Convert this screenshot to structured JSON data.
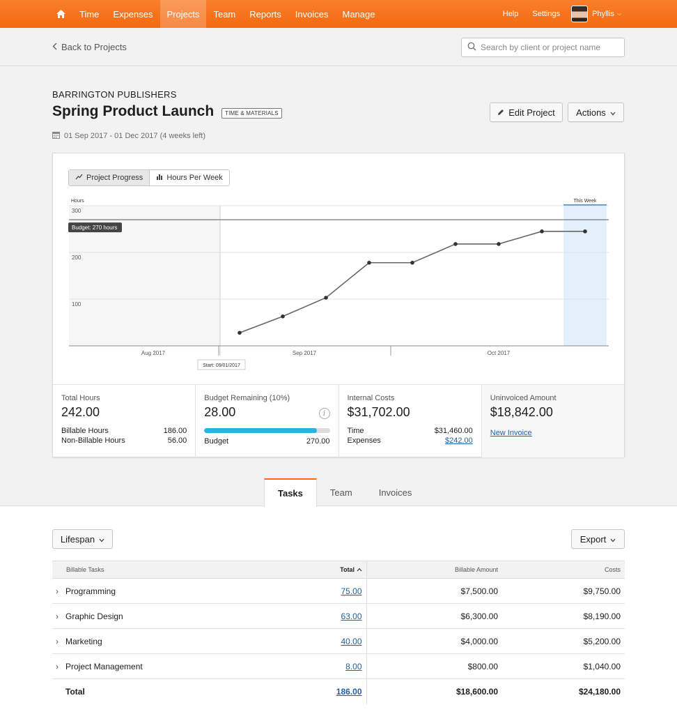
{
  "nav": {
    "items": [
      "Time",
      "Expenses",
      "Projects",
      "Team",
      "Reports",
      "Invoices",
      "Manage"
    ],
    "active": "Projects",
    "help": "Help",
    "settings": "Settings",
    "user": "Phyllis"
  },
  "subheader": {
    "back_label": "Back to Projects",
    "search_placeholder": "Search by client or project name"
  },
  "project": {
    "client": "BARRINGTON PUBLISHERS",
    "title": "Spring Product Launch",
    "badge": "TIME & MATERIALS",
    "dates": "01 Sep 2017 - 01 Dec 2017 (4 weeks left)",
    "edit_label": "Edit Project",
    "actions_label": "Actions"
  },
  "chart_toggle": {
    "progress_label": "Project Progress",
    "hours_label": "Hours Per Week"
  },
  "chart_data": {
    "type": "line",
    "ylabel": "Hours",
    "ylim": [
      0,
      300
    ],
    "yticks": [
      100,
      200,
      300
    ],
    "xtick_labels": [
      "Aug 2017",
      "Sep 2017",
      "Oct 2017"
    ],
    "budget_line": 270,
    "budget_label": "Budget: 270 hours",
    "start_label": "Start: 09/01/2017",
    "this_week_label": "This Week",
    "series": [
      {
        "values": [
          28,
          63,
          103,
          178,
          178,
          218,
          218,
          245,
          245
        ]
      }
    ]
  },
  "stats": {
    "total_hours": {
      "label": "Total Hours",
      "value": "242.00",
      "billable_label": "Billable Hours",
      "billable_value": "186.00",
      "nonbillable_label": "Non-Billable Hours",
      "nonbillable_value": "56.00"
    },
    "budget_remaining": {
      "label": "Budget Remaining (10%)",
      "value": "28.00",
      "progress_fraction": 0.9,
      "budget_label": "Budget",
      "budget_value": "270.00"
    },
    "internal_costs": {
      "label": "Internal Costs",
      "value": "$31,702.00",
      "time_label": "Time",
      "time_value": "$31,460.00",
      "expenses_label": "Expenses",
      "expenses_value": "$242.00"
    },
    "uninvoiced": {
      "label": "Uninvoiced Amount",
      "value": "$18,842.00",
      "link": "New Invoice"
    }
  },
  "tabs": [
    "Tasks",
    "Team",
    "Invoices"
  ],
  "active_tab": "Tasks",
  "filters": {
    "lifespan_label": "Lifespan",
    "export_label": "Export"
  },
  "table": {
    "headers": {
      "name": "Billable Tasks",
      "total": "Total",
      "amount": "Billable Amount",
      "costs": "Costs"
    },
    "rows": [
      {
        "name": "Programming",
        "total": "75.00",
        "amount": "$7,500.00",
        "costs": "$9,750.00"
      },
      {
        "name": "Graphic Design",
        "total": "63.00",
        "amount": "$6,300.00",
        "costs": "$8,190.00"
      },
      {
        "name": "Marketing",
        "total": "40.00",
        "amount": "$4,000.00",
        "costs": "$5,200.00"
      },
      {
        "name": "Project Management",
        "total": "8.00",
        "amount": "$800.00",
        "costs": "$1,040.00"
      }
    ],
    "total_row": {
      "name": "Total",
      "total": "186.00",
      "amount": "$18,600.00",
      "costs": "$24,180.00"
    }
  }
}
